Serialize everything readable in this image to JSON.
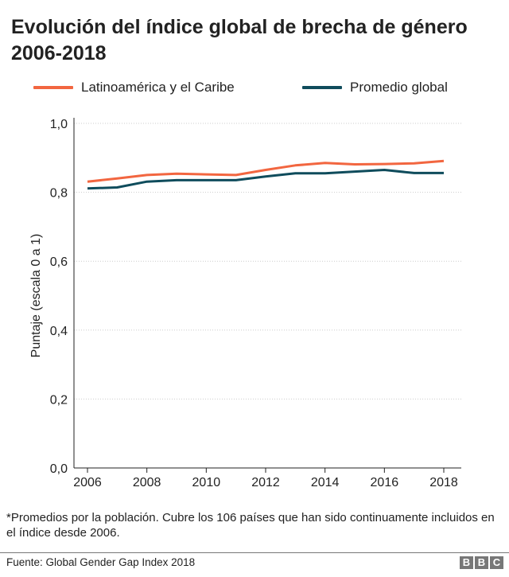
{
  "chart_data": {
    "type": "line",
    "title": "Evolución del índice global de brecha de género 2006-2018",
    "xlabel": "",
    "ylabel": "Puntaje (escala 0 a 1)",
    "x": [
      2006,
      2007,
      2008,
      2009,
      2010,
      2011,
      2012,
      2013,
      2014,
      2015,
      2016,
      2017,
      2018
    ],
    "xticks": [
      "2006",
      "2008",
      "2010",
      "2012",
      "2014",
      "2016",
      "2018"
    ],
    "yticks": [
      "0,0",
      "0,2",
      "0,4",
      "0,6",
      "0,8",
      "1,0"
    ],
    "ylim": [
      0,
      1
    ],
    "grid": true,
    "legend_position": "top",
    "series": [
      {
        "name": "Latinoamérica y el Caribe",
        "color": "#f26640",
        "values": [
          0.831,
          0.84,
          0.85,
          0.854,
          0.852,
          0.85,
          0.865,
          0.878,
          0.885,
          0.881,
          0.882,
          0.884,
          0.891
        ]
      },
      {
        "name": "Promedio global",
        "color": "#0f4c5c",
        "values": [
          0.811,
          0.814,
          0.831,
          0.835,
          0.835,
          0.835,
          0.846,
          0.855,
          0.855,
          0.86,
          0.865,
          0.856,
          0.856
        ]
      }
    ]
  },
  "footnote": "*Promedios por la población. Cubre los 106 países que han sido continuamente incluidos en el índice desde 2006.",
  "source": "Fuente: Global Gender Gap Index 2018",
  "logo": [
    "B",
    "B",
    "C"
  ]
}
